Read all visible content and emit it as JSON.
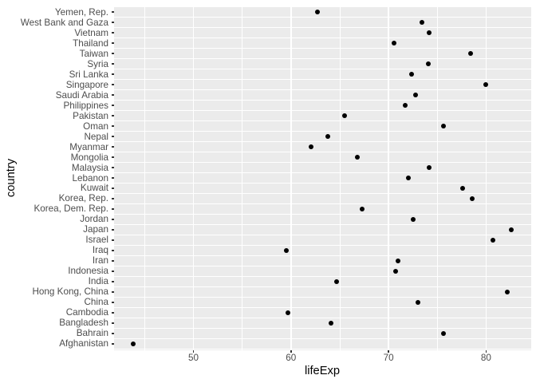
{
  "figure": {
    "x_axis_title": "lifeExp",
    "y_axis_title": "country"
  },
  "chart_data": {
    "type": "scatter",
    "subtype": "horizontal-dot-plot",
    "title": "",
    "xlabel": "lifeExp",
    "ylabel": "country",
    "xlim": [
      41.86,
      84.63
    ],
    "x_major_ticks": [
      50,
      60,
      70,
      80
    ],
    "x_minor_ticks": [
      45,
      55,
      65,
      75
    ],
    "grid": "on",
    "legend_position": "none",
    "categories": [
      "Yemen, Rep.",
      "West Bank and Gaza",
      "Vietnam",
      "Thailand",
      "Taiwan",
      "Syria",
      "Sri Lanka",
      "Singapore",
      "Saudi Arabia",
      "Philippines",
      "Pakistan",
      "Oman",
      "Nepal",
      "Myanmar",
      "Mongolia",
      "Malaysia",
      "Lebanon",
      "Kuwait",
      "Korea, Rep.",
      "Korea, Dem. Rep.",
      "Jordan",
      "Japan",
      "Israel",
      "Iraq",
      "Iran",
      "Indonesia",
      "India",
      "Hong Kong, China",
      "China",
      "Cambodia",
      "Bangladesh",
      "Bahrain",
      "Afghanistan"
    ],
    "values": [
      62.7,
      73.4,
      74.2,
      70.6,
      78.4,
      74.1,
      72.4,
      80.0,
      72.8,
      71.7,
      65.5,
      75.6,
      63.8,
      62.1,
      66.8,
      74.2,
      72.0,
      77.6,
      78.6,
      67.3,
      72.5,
      82.6,
      80.7,
      59.5,
      71.0,
      70.7,
      64.7,
      82.2,
      73.0,
      59.7,
      64.1,
      75.6,
      43.8
    ],
    "colors": {
      "panel_background": "#EBEBEB",
      "gridline": "#FFFFFF",
      "point": "#000000",
      "tick_label": "#4D4D4D",
      "axis_title": "#000000",
      "tick_mark": "#333333",
      "figure_background": "#FFFFFF"
    }
  }
}
